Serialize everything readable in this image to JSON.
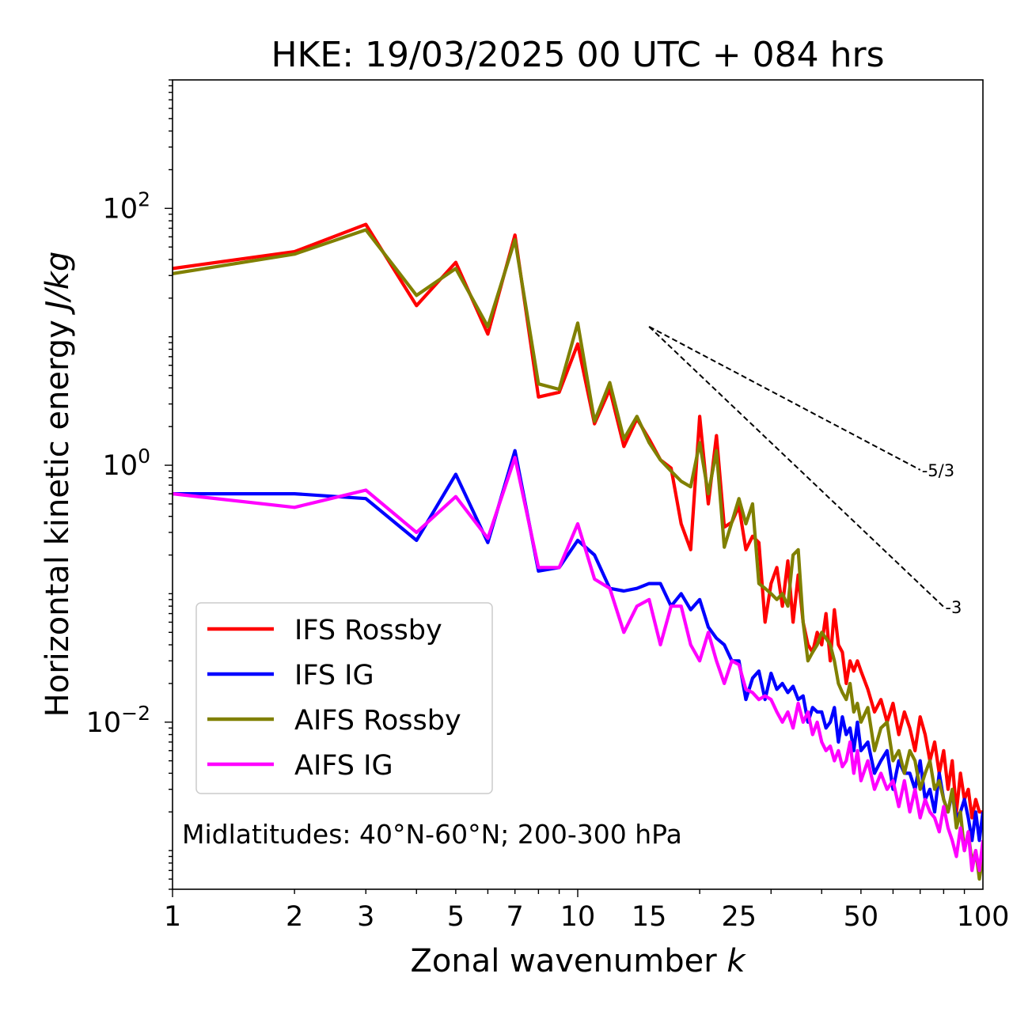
{
  "chart_data": {
    "type": "line",
    "title": "HKE: 19/03/2025 00 UTC + 084 hrs",
    "xlabel": "Zonal wavenumber",
    "xlabel_var": "k",
    "ylabel": "Horizontal kinetic energy",
    "ylabel_unit": "J/kg",
    "xscale": "log",
    "yscale": "log",
    "xlim": [
      1,
      100
    ],
    "ylim": [
      0.0005,
      1000
    ],
    "x_ticks": [
      {
        "value": 1,
        "label": "1"
      },
      {
        "value": 2,
        "label": "2"
      },
      {
        "value": 3,
        "label": "3"
      },
      {
        "value": 5,
        "label": "5"
      },
      {
        "value": 7,
        "label": "7"
      },
      {
        "value": 10,
        "label": "10"
      },
      {
        "value": 15,
        "label": "15"
      },
      {
        "value": 25,
        "label": "25"
      },
      {
        "value": 50,
        "label": "50"
      },
      {
        "value": 100,
        "label": "100"
      }
    ],
    "y_ticks": [
      {
        "value": 0.01,
        "base": "10",
        "exp": "−2"
      },
      {
        "value": 1,
        "base": "10",
        "exp": "0"
      },
      {
        "value": 100,
        "base": "10",
        "exp": "2"
      }
    ],
    "annotation": "Midlatitudes: 40°N-60°N; 200-300 hPa",
    "legend_position": "lower-left",
    "series": [
      {
        "name": "IFS Rossby",
        "color": "#ff0000",
        "x": [
          1,
          2,
          3,
          4,
          5,
          6,
          7,
          8,
          9,
          10,
          11,
          12,
          13,
          14,
          15,
          16,
          17,
          18,
          19,
          20,
          21,
          22,
          23,
          24,
          25,
          26,
          27,
          28,
          29,
          30,
          31,
          32,
          33,
          34,
          35,
          36,
          37,
          38,
          39,
          40,
          41,
          42,
          43,
          44,
          45,
          46,
          47,
          48,
          49,
          50,
          52,
          54,
          56,
          58,
          60,
          62,
          64,
          66,
          68,
          70,
          72,
          74,
          76,
          78,
          80,
          82,
          84,
          86,
          88,
          90,
          92,
          94,
          96,
          98,
          100
        ],
        "y": [
          34,
          46,
          75,
          17.5,
          38,
          10.5,
          62,
          3.4,
          3.7,
          8.8,
          2.1,
          3.9,
          1.4,
          2.3,
          1.6,
          1.1,
          0.95,
          0.35,
          0.22,
          2.4,
          0.5,
          1.7,
          0.33,
          0.36,
          0.48,
          0.22,
          0.28,
          0.25,
          0.06,
          0.12,
          0.16,
          0.08,
          0.18,
          0.06,
          0.14,
          0.06,
          0.04,
          0.035,
          0.05,
          0.04,
          0.07,
          0.03,
          0.075,
          0.04,
          0.035,
          0.02,
          0.03,
          0.025,
          0.03,
          0.025,
          0.018,
          0.012,
          0.015,
          0.01,
          0.014,
          0.008,
          0.012,
          0.009,
          0.006,
          0.011,
          0.008,
          0.005,
          0.007,
          0.004,
          0.006,
          0.003,
          0.005,
          0.002,
          0.004,
          0.0025,
          0.003,
          0.0018,
          0.0025,
          0.002,
          0.002
        ]
      },
      {
        "name": "IFS IG",
        "color": "#0000ff",
        "x": [
          1,
          2,
          3,
          4,
          5,
          6,
          7,
          8,
          9,
          10,
          11,
          12,
          13,
          14,
          15,
          16,
          17,
          18,
          19,
          20,
          21,
          22,
          23,
          24,
          25,
          26,
          27,
          28,
          29,
          30,
          31,
          32,
          33,
          34,
          35,
          36,
          37,
          38,
          39,
          40,
          41,
          42,
          43,
          44,
          45,
          46,
          47,
          48,
          49,
          50,
          52,
          54,
          56,
          58,
          60,
          62,
          64,
          66,
          68,
          70,
          72,
          74,
          76,
          78,
          80,
          82,
          84,
          86,
          88,
          90,
          92,
          94,
          96,
          98,
          100
        ],
        "y": [
          0.6,
          0.6,
          0.55,
          0.26,
          0.85,
          0.25,
          1.3,
          0.15,
          0.16,
          0.26,
          0.2,
          0.11,
          0.105,
          0.11,
          0.12,
          0.12,
          0.08,
          0.1,
          0.075,
          0.09,
          0.055,
          0.045,
          0.04,
          0.03,
          0.03,
          0.015,
          0.022,
          0.025,
          0.015,
          0.024,
          0.018,
          0.02,
          0.017,
          0.019,
          0.015,
          0.016,
          0.01,
          0.013,
          0.012,
          0.012,
          0.009,
          0.01,
          0.013,
          0.007,
          0.011,
          0.008,
          0.009,
          0.006,
          0.01,
          0.006,
          0.007,
          0.004,
          0.005,
          0.006,
          0.003,
          0.005,
          0.004,
          0.004,
          0.003,
          0.005,
          0.0025,
          0.003,
          0.002,
          0.004,
          0.0025,
          0.002,
          0.0028,
          0.0018,
          0.002,
          0.0025,
          0.0018,
          0.0012,
          0.002,
          0.0012,
          0.002
        ]
      },
      {
        "name": "AIFS Rossby",
        "color": "#808000",
        "x": [
          1,
          2,
          3,
          4,
          5,
          6,
          7,
          8,
          9,
          10,
          11,
          12,
          13,
          14,
          15,
          16,
          17,
          18,
          19,
          20,
          21,
          22,
          23,
          24,
          25,
          26,
          27,
          28,
          29,
          30,
          31,
          32,
          33,
          34,
          35,
          36,
          37,
          38,
          39,
          40,
          41,
          42,
          43,
          44,
          45,
          46,
          47,
          48,
          49,
          50,
          52,
          54,
          56,
          58,
          60,
          62,
          64,
          66,
          68,
          70,
          72,
          74,
          76,
          78,
          80,
          82,
          84,
          86,
          88,
          90,
          92,
          94,
          96,
          98,
          100
        ],
        "y": [
          31,
          44,
          68,
          21,
          34,
          12,
          57,
          4.3,
          3.9,
          12.8,
          2.2,
          4.4,
          1.6,
          2.4,
          1.5,
          1.1,
          0.9,
          0.75,
          0.68,
          1.5,
          0.6,
          1.3,
          0.23,
          0.36,
          0.55,
          0.35,
          0.5,
          0.12,
          0.11,
          0.1,
          0.09,
          0.1,
          0.08,
          0.2,
          0.22,
          0.06,
          0.03,
          0.035,
          0.04,
          0.05,
          0.045,
          0.04,
          0.03,
          0.02,
          0.017,
          0.015,
          0.02,
          0.012,
          0.014,
          0.01,
          0.013,
          0.006,
          0.009,
          0.01,
          0.005,
          0.006,
          0.004,
          0.006,
          0.005,
          0.003,
          0.004,
          0.005,
          0.003,
          0.0035,
          0.0025,
          0.002,
          0.003,
          0.0015,
          0.002,
          0.001,
          0.0014,
          0.0008,
          0.001,
          0.0006,
          0.0009
        ]
      },
      {
        "name": "AIFS IG",
        "color": "#ff00ff",
        "x": [
          1,
          2,
          3,
          4,
          5,
          6,
          7,
          8,
          9,
          10,
          11,
          12,
          13,
          14,
          15,
          16,
          17,
          18,
          19,
          20,
          21,
          22,
          23,
          24,
          25,
          26,
          27,
          28,
          29,
          30,
          31,
          32,
          33,
          34,
          35,
          36,
          37,
          38,
          39,
          40,
          41,
          42,
          43,
          44,
          45,
          46,
          47,
          48,
          49,
          50,
          52,
          54,
          56,
          58,
          60,
          62,
          64,
          66,
          68,
          70,
          72,
          74,
          76,
          78,
          80,
          82,
          84,
          86,
          88,
          90,
          92,
          94,
          96,
          98,
          100
        ],
        "y": [
          0.6,
          0.47,
          0.64,
          0.3,
          0.57,
          0.27,
          1.15,
          0.16,
          0.16,
          0.35,
          0.13,
          0.11,
          0.05,
          0.08,
          0.09,
          0.04,
          0.08,
          0.08,
          0.04,
          0.03,
          0.05,
          0.03,
          0.02,
          0.03,
          0.028,
          0.018,
          0.017,
          0.015,
          0.016,
          0.015,
          0.012,
          0.01,
          0.012,
          0.009,
          0.014,
          0.01,
          0.012,
          0.008,
          0.01,
          0.007,
          0.006,
          0.0065,
          0.005,
          0.006,
          0.0045,
          0.005,
          0.007,
          0.004,
          0.006,
          0.0035,
          0.005,
          0.003,
          0.004,
          0.003,
          0.0035,
          0.0022,
          0.0035,
          0.002,
          0.003,
          0.0018,
          0.0025,
          0.002,
          0.0018,
          0.0014,
          0.0022,
          0.0015,
          0.0012,
          0.0009,
          0.0015,
          0.001,
          0.0014,
          0.0007,
          0.001,
          0.0007,
          0.0012
        ]
      }
    ],
    "reference_slopes": [
      {
        "label": "-5/3",
        "slope": -1.6667,
        "x": [
          15,
          70
        ],
        "y": [
          12,
          0.92
        ]
      },
      {
        "label": "-3",
        "slope": -3,
        "x": [
          15,
          80
        ],
        "y": [
          12,
          0.079
        ]
      }
    ]
  }
}
